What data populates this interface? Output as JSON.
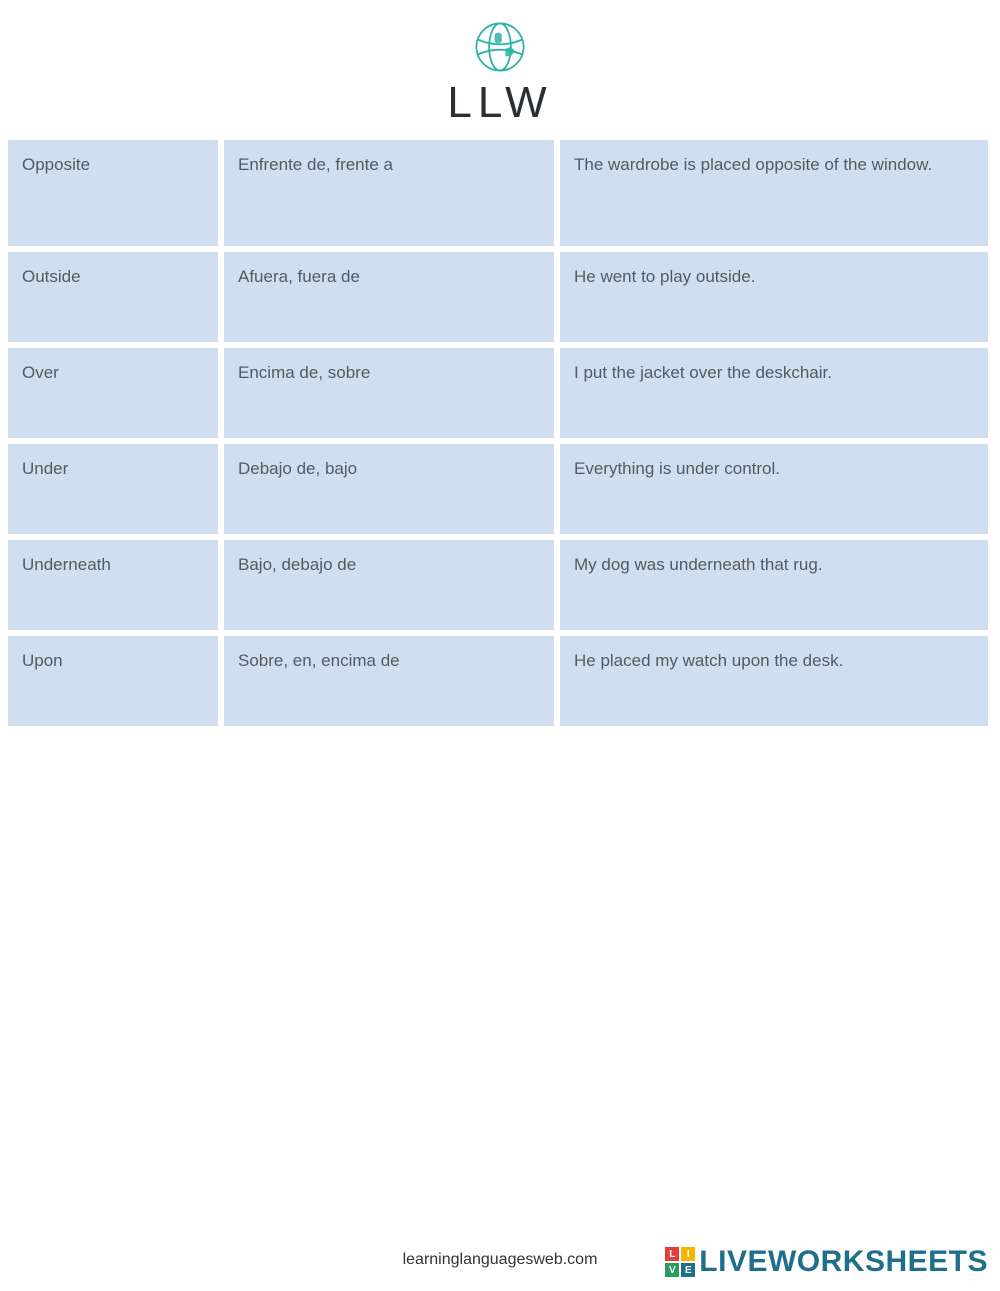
{
  "logo": {
    "text": "LLW",
    "globe_color": "#2fb3a6"
  },
  "table": {
    "cell_bg": "#cfdff0",
    "cell_text_color": "#555a60",
    "rows": [
      {
        "en": "Opposite",
        "es": "Enfrente de, frente a",
        "example": "The wardrobe is placed opposite of the window.",
        "tall": true
      },
      {
        "en": "Outside",
        "es": "Afuera, fuera de",
        "example": "He went to play outside."
      },
      {
        "en": "Over",
        "es": "Encima de, sobre",
        "example": "I put the jacket over the deskchair."
      },
      {
        "en": "Under",
        "es": "Debajo de, bajo",
        "example": "Everything is under control."
      },
      {
        "en": "Underneath",
        "es": "Bajo, debajo de",
        "example": "My dog was underneath that rug."
      },
      {
        "en": "Upon",
        "es": "Sobre, en, encima de",
        "example": "He placed my watch upon the desk."
      }
    ]
  },
  "footer": {
    "url": "learninglanguagesweb.com",
    "brand": "LIVEWORKSHEETS",
    "brand_color": "#1f6f8b",
    "squares": [
      {
        "letter": "L",
        "bg": "#e03e3e"
      },
      {
        "letter": "I",
        "bg": "#f2b705"
      },
      {
        "letter": "V",
        "bg": "#2a9d5c"
      },
      {
        "letter": "E",
        "bg": "#1f6f8b"
      }
    ]
  }
}
